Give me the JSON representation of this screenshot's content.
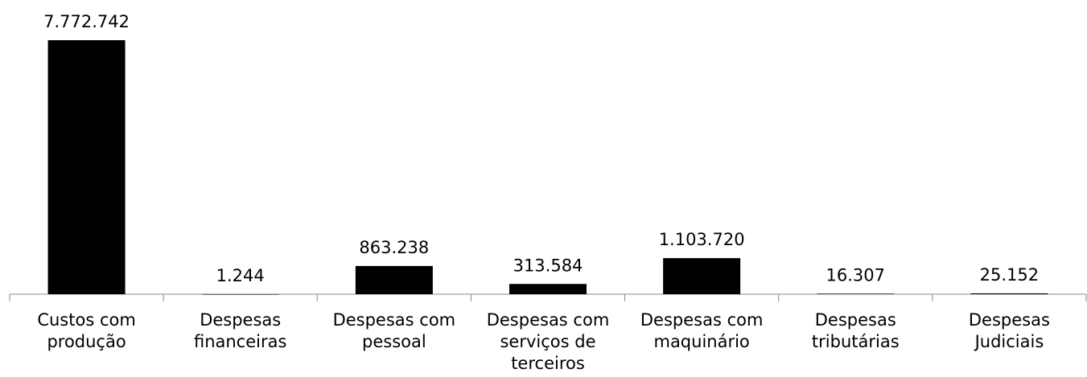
{
  "chart_data": {
    "type": "bar",
    "categories": [
      "Custos com produção",
      "Despesas financeiras",
      "Despesas com pessoal",
      "Despesas com serviços de terceiros",
      "Despesas com maquinário",
      "Despesas tributárias",
      "Despesas Judiciais"
    ],
    "values": [
      7772742,
      1244,
      863238,
      313584,
      1103720,
      16307,
      25152
    ],
    "value_labels": [
      "7.772.742",
      "1.244",
      "863.238",
      "313.584",
      "1.103.720",
      "16.307",
      "25.152"
    ],
    "color": "#000000"
  }
}
